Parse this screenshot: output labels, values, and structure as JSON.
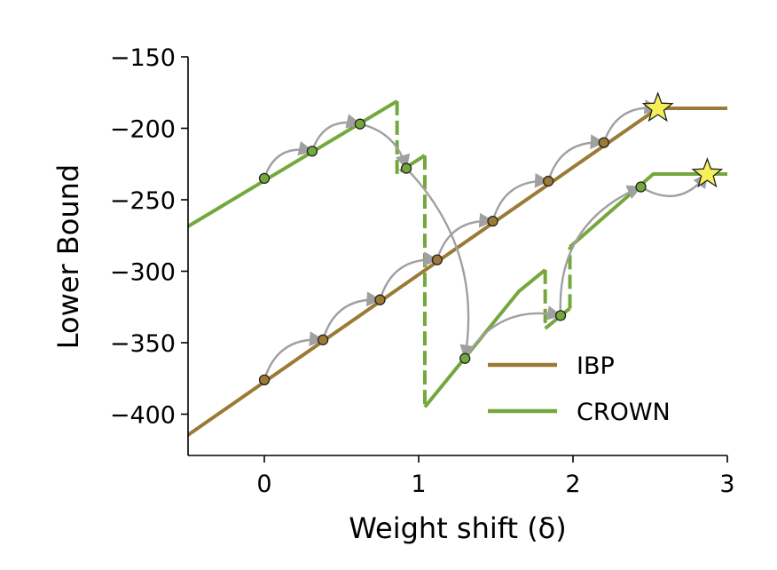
{
  "chart_data": {
    "type": "line",
    "xlabel": "Weight shift (δ)",
    "ylabel": "Lower Bound",
    "xlim": [
      -0.5,
      3.0
    ],
    "ylim": [
      -430,
      -150
    ],
    "xticks": [
      0,
      1,
      2,
      3
    ],
    "yticks": [
      -150,
      -200,
      -250,
      -300,
      -350,
      -400
    ],
    "xtick_labels": [
      "0",
      "1",
      "2",
      "3"
    ],
    "ytick_labels": [
      "−150",
      "−200",
      "−250",
      "−300",
      "−350",
      "−400"
    ],
    "grid": false,
    "legend_position": "lower-right",
    "colors": {
      "IBP": "#9b7a35",
      "CROWN": "#74a83d",
      "arrow": "#a0a0a0",
      "star": "#f5f05a"
    },
    "series": [
      {
        "name": "IBP",
        "segments": [
          [
            [
              -0.5,
              -415
            ],
            [
              2.55,
              -186
            ]
          ],
          [
            [
              -0.5,
              -415
            ],
            [
              2.55,
              -186
            ],
            [
              3.0,
              -186
            ]
          ]
        ],
        "points": [
          {
            "x": 0.0,
            "y": -376
          },
          {
            "x": 0.38,
            "y": -348
          },
          {
            "x": 0.75,
            "y": -320
          },
          {
            "x": 1.12,
            "y": -292
          },
          {
            "x": 1.48,
            "y": -265
          },
          {
            "x": 1.84,
            "y": -237
          },
          {
            "x": 2.2,
            "y": -210
          }
        ],
        "optimum": {
          "x": 2.55,
          "y": -186
        }
      },
      {
        "name": "CROWN",
        "solid_segments": [
          [
            [
              -0.5,
              -269
            ],
            [
              0.86,
              -181
            ]
          ],
          [
            [
              0.88,
              -230
            ],
            [
              1.04,
              -219
            ]
          ],
          [
            [
              1.04,
              -395
            ],
            [
              1.65,
              -314
            ],
            [
              1.82,
              -299
            ]
          ],
          [
            [
              1.82,
              -340
            ],
            [
              1.98,
              -326
            ]
          ],
          [
            [
              1.98,
              -283
            ],
            [
              2.52,
              -232
            ],
            [
              3.0,
              -232
            ]
          ]
        ],
        "dashed_segments": [
          [
            [
              0.86,
              -181
            ],
            [
              0.86,
              -232
            ]
          ],
          [
            [
              1.04,
              -219
            ],
            [
              1.04,
              -395
            ]
          ],
          [
            [
              1.82,
              -299
            ],
            [
              1.82,
              -340
            ]
          ],
          [
            [
              1.98,
              -326
            ],
            [
              1.98,
              -283
            ]
          ]
        ],
        "points": [
          {
            "x": 0.0,
            "y": -235
          },
          {
            "x": 0.31,
            "y": -216
          },
          {
            "x": 0.62,
            "y": -197
          },
          {
            "x": 0.92,
            "y": -228
          },
          {
            "x": 1.3,
            "y": -361
          },
          {
            "x": 1.92,
            "y": -331
          },
          {
            "x": 2.44,
            "y": -241
          }
        ],
        "optimum": {
          "x": 2.87,
          "y": -232
        }
      }
    ],
    "legend": [
      {
        "name": "IBP"
      },
      {
        "name": "CROWN"
      }
    ]
  }
}
